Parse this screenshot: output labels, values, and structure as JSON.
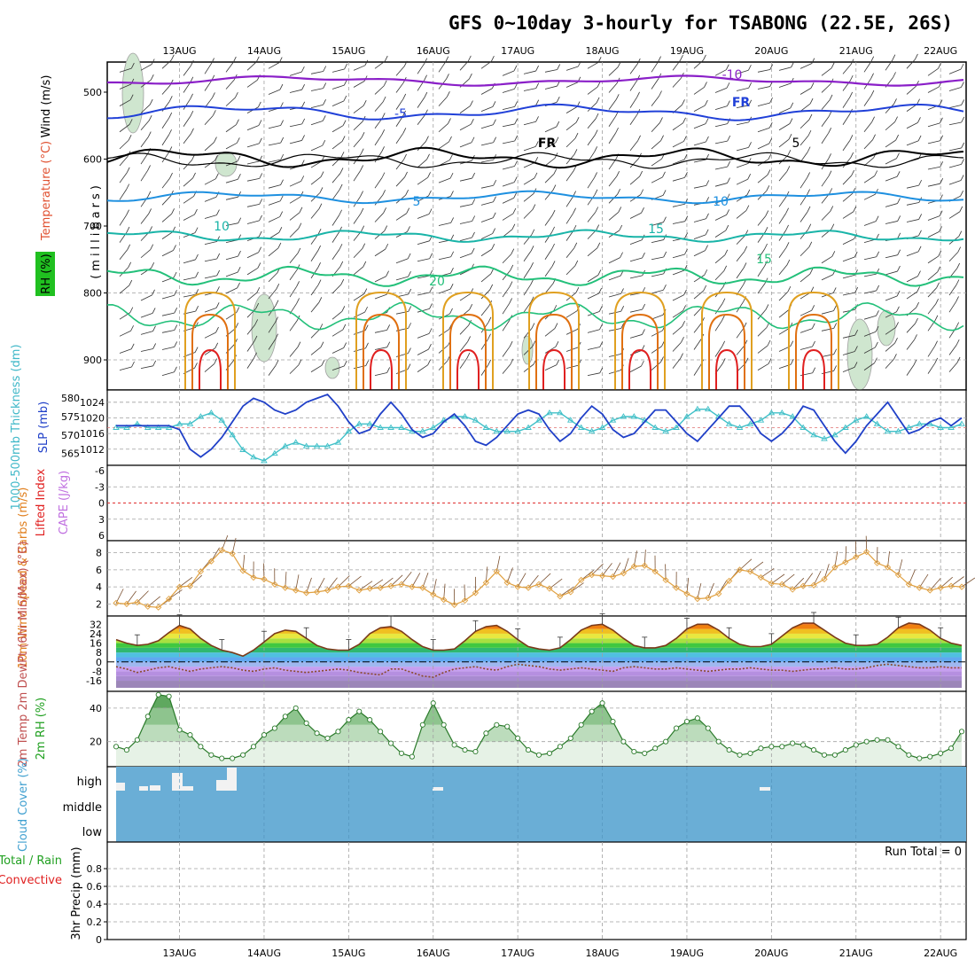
{
  "title": "GFS 0~10day 3-hourly for TSABONG (22.5E, 26S)",
  "dates": [
    "13AUG",
    "14AUG",
    "15AUG",
    "16AUG",
    "17AUG",
    "18AUG",
    "19AUG",
    "20AUG",
    "21AUG",
    "22AUG"
  ],
  "colors": {
    "purple": "#8a1fc8",
    "blue": "#2040d8",
    "black": "#000000",
    "lightblue": "#1e90e0",
    "teal": "#19b4a8",
    "green": "#23c07a",
    "orange": "#e0a020",
    "darkorange": "#e07010",
    "red": "#e02020",
    "cloud": "#6aaed6",
    "slp": "#2040c8",
    "thickness": "#40c0c8",
    "wind10": "#e0a040",
    "rh": "#40a040",
    "grid": "#a0a0a0"
  },
  "panels": {
    "upper": {
      "ylabels": [
        {
          "text": "Wind (m/s)",
          "color": "#000000"
        },
        {
          "text": "Temperature (°C)",
          "color": "#e05030"
        },
        {
          "text": "(millibars)",
          "color": "#000000"
        },
        {
          "text": "RH (%)",
          "color": "#000000"
        }
      ],
      "ticks": [
        "500",
        "600",
        "700",
        "800",
        "900"
      ],
      "contour_labels": [
        "-10",
        "-5",
        "FR",
        "FR",
        "5",
        "5",
        "10",
        "10",
        "15",
        "15",
        "20"
      ]
    },
    "slp": {
      "ylabel_left": "1000-500mb Thickness (dm)",
      "ylabel_right": "SLP (mb)",
      "left_ticks": [
        "580",
        "575",
        "570",
        "565"
      ],
      "right_ticks": [
        "1024",
        "1020",
        "1016",
        "1012"
      ]
    },
    "cape": {
      "ylabel_left": "Lifted Index",
      "ylabel_right": "CAPE (J/kg)",
      "ticks": [
        "-6",
        "-3",
        "0",
        "3",
        "6"
      ]
    },
    "wind": {
      "ylabel": "10m Wind Speed & Barbs (m/s)",
      "ticks": [
        "8",
        "6",
        "4",
        "2"
      ]
    },
    "temp": {
      "ylabel": "2m Temp 2m DewPt (6hr Min/Max) (°C)",
      "ticks": [
        "32",
        "24",
        "16",
        "8",
        "0",
        "-8",
        "-16"
      ]
    },
    "rh": {
      "ylabel": "2m RH (%)",
      "ticks": [
        "40",
        "20"
      ]
    },
    "cloud": {
      "ylabel": "Cloud Cover (%)",
      "levels": [
        "high",
        "middle",
        "low"
      ]
    },
    "precip": {
      "ylabel": "3hr Precip (mm)",
      "legend_total": "Total / Rain",
      "legend_conv": "Convective",
      "ticks": [
        "0.8",
        "0.6",
        "0.4",
        "0.2",
        "0"
      ],
      "run_total": "Run Total = 0"
    }
  },
  "chart_data": [
    {
      "type": "line",
      "name": "SLP and 1000-500mb Thickness",
      "x_unit": "hours from 12 Aug 18Z",
      "x": [
        0,
        3,
        6,
        9,
        12,
        15,
        18,
        21,
        24,
        27,
        30,
        33,
        36,
        39,
        42,
        45,
        48,
        51,
        54,
        57,
        60,
        63,
        66,
        69,
        72,
        75,
        78,
        81,
        84,
        87,
        90,
        93,
        96,
        99,
        102,
        105,
        108,
        111,
        114,
        117,
        120,
        123,
        126,
        129,
        132,
        135,
        138,
        141,
        144,
        147,
        150,
        153,
        156,
        159,
        162,
        165,
        168,
        171,
        174,
        177,
        180,
        183,
        186,
        189,
        192,
        195,
        198,
        201,
        204,
        207,
        210,
        213,
        216,
        219,
        222,
        225,
        228,
        231,
        234,
        237,
        240
      ],
      "series": [
        {
          "name": "SLP (mb)",
          "axis": "right",
          "ylim": [
            1009,
            1026
          ],
          "values": [
            1018,
            1018,
            1018,
            1018,
            1018,
            1018,
            1017,
            1012,
            1010,
            1012,
            1015,
            1019,
            1023,
            1025,
            1024,
            1022,
            1021,
            1022,
            1024,
            1025,
            1026,
            1023,
            1019,
            1016,
            1017,
            1021,
            1024,
            1021,
            1017,
            1015,
            1016,
            1019,
            1021,
            1018,
            1014,
            1013,
            1015,
            1018,
            1021,
            1022,
            1021,
            1017,
            1014,
            1016,
            1020,
            1023,
            1021,
            1017,
            1015,
            1016,
            1019,
            1022,
            1022,
            1019,
            1016,
            1014,
            1017,
            1020,
            1023,
            1023,
            1020,
            1016,
            1014,
            1016,
            1019,
            1023,
            1022,
            1018,
            1014,
            1011,
            1014,
            1018,
            1021,
            1024,
            1020,
            1016,
            1017,
            1019,
            1020,
            1018,
            1020
          ]
        },
        {
          "name": "1000-500mb Thickness (dm)",
          "axis": "left",
          "ylim": [
            563,
            581
          ],
          "values": [
            572,
            572,
            573,
            572,
            572,
            572,
            573,
            573,
            575,
            576,
            574,
            570,
            566,
            564,
            563,
            565,
            567,
            568,
            567,
            567,
            567,
            568,
            571,
            573,
            573,
            572,
            572,
            572,
            571,
            571,
            572,
            574,
            575,
            575,
            574,
            572,
            571,
            571,
            571,
            572,
            574,
            576,
            576,
            574,
            572,
            571,
            572,
            574,
            575,
            575,
            574,
            572,
            571,
            572,
            575,
            577,
            577,
            575,
            573,
            572,
            573,
            574,
            576,
            576,
            575,
            572,
            570,
            569,
            570,
            572,
            574,
            575,
            573,
            571,
            571,
            572,
            573,
            573,
            572,
            572,
            573
          ]
        }
      ]
    },
    {
      "type": "line",
      "name": "Lifted Index / CAPE",
      "x_unit": "hours from 12 Aug 18Z",
      "ylim": [
        6,
        -6
      ],
      "series": [
        {
          "name": "Lifted Index zero line",
          "values": [
            0,
            0
          ]
        }
      ]
    },
    {
      "type": "line",
      "name": "10m Wind Speed (m/s)",
      "x_unit": "hours from 12 Aug 18Z",
      "ylim": [
        1,
        9
      ],
      "x": [
        0,
        3,
        6,
        9,
        12,
        15,
        18,
        21,
        24,
        27,
        30,
        33,
        36,
        39,
        42,
        45,
        48,
        51,
        54,
        57,
        60,
        63,
        66,
        69,
        72,
        75,
        78,
        81,
        84,
        87,
        90,
        93,
        96,
        99,
        102,
        105,
        108,
        111,
        114,
        117,
        120,
        123,
        126,
        129,
        132,
        135,
        138,
        141,
        144,
        147,
        150,
        153,
        156,
        159,
        162,
        165,
        168,
        171,
        174,
        177,
        180,
        183,
        186,
        189,
        192,
        195,
        198,
        201,
        204,
        207,
        210,
        213,
        216,
        219,
        222,
        225,
        228,
        231,
        234,
        237,
        240
      ],
      "series": [
        {
          "name": "10m Wind Speed",
          "values": [
            2.1,
            2.0,
            2.2,
            1.7,
            1.6,
            2.6,
            4.0,
            4.1,
            5.8,
            7.0,
            8.3,
            7.9,
            5.9,
            5.1,
            4.9,
            4.3,
            3.9,
            3.6,
            3.3,
            3.4,
            3.6,
            4.0,
            4.1,
            3.6,
            3.8,
            3.9,
            4.1,
            4.3,
            4.0,
            3.9,
            3.1,
            2.5,
            1.9,
            2.4,
            3.3,
            4.5,
            5.8,
            4.5,
            4.0,
            3.9,
            4.3,
            3.8,
            2.9,
            3.4,
            4.8,
            5.4,
            5.3,
            5.2,
            5.6,
            6.4,
            6.5,
            5.8,
            4.8,
            3.9,
            3.2,
            2.6,
            2.7,
            3.2,
            4.7,
            6.0,
            5.8,
            5.1,
            4.4,
            4.3,
            3.7,
            4.1,
            4.2,
            4.9,
            6.3,
            6.9,
            7.5,
            8.1,
            6.8,
            6.3,
            5.4,
            4.3,
            3.9,
            3.6,
            3.9,
            4.1,
            4.0
          ]
        }
      ]
    },
    {
      "type": "area",
      "name": "2m Temperature and Dew Point (°C)",
      "x_unit": "hours from 12 Aug 18Z",
      "ylim": [
        -22,
        36
      ],
      "series": [
        {
          "name": "2m Temp",
          "values": [
            19,
            16,
            14,
            15,
            18,
            25,
            31,
            28,
            20,
            14,
            10,
            8,
            5,
            10,
            17,
            24,
            27,
            26,
            20,
            14,
            11,
            10,
            10,
            15,
            24,
            29,
            30,
            26,
            19,
            13,
            10,
            10,
            11,
            18,
            26,
            30,
            31,
            26,
            19,
            13,
            11,
            10,
            12,
            19,
            27,
            31,
            32,
            27,
            20,
            14,
            12,
            12,
            14,
            20,
            28,
            32,
            32,
            27,
            20,
            15,
            13,
            13,
            15,
            22,
            29,
            33,
            33,
            27,
            21,
            16,
            14,
            14,
            15,
            21,
            29,
            33,
            32,
            27,
            20,
            16,
            14
          ]
        },
        {
          "name": "2m DewPt",
          "values": [
            -4,
            -6,
            -9,
            -7,
            -5,
            -4,
            -6,
            -8,
            -6,
            -5,
            -4,
            -5,
            -7,
            -8,
            -6,
            -5,
            -7,
            -8,
            -9,
            -8,
            -7,
            -6,
            -7,
            -9,
            -10,
            -11,
            -6,
            -6,
            -9,
            -12,
            -13,
            -9,
            -6,
            -5,
            -4,
            -6,
            -7,
            -4,
            -2,
            -3,
            -4,
            -6,
            -7,
            -6,
            -5,
            -6,
            -7,
            -8,
            -5,
            -4,
            -5,
            -6,
            -6,
            -5,
            -6,
            -7,
            -8,
            -7,
            -6,
            -6,
            -5,
            -6,
            -7,
            -7,
            -8,
            -7,
            -6,
            -6,
            -5,
            -6,
            -6,
            -5,
            -3,
            -2,
            -3,
            -4,
            -5,
            -5,
            -4,
            -5,
            -5
          ]
        }
      ]
    },
    {
      "type": "area",
      "name": "2m RH (%)",
      "x_unit": "hours from 12 Aug 18Z",
      "ylim": [
        5,
        50
      ],
      "series": [
        {
          "name": "2m RH",
          "values": [
            17,
            15,
            21,
            35,
            48,
            47,
            27,
            24,
            17,
            12,
            10,
            10,
            12,
            17,
            24,
            28,
            35,
            40,
            31,
            25,
            22,
            26,
            33,
            38,
            33,
            26,
            19,
            13,
            11,
            30,
            43,
            30,
            18,
            15,
            14,
            25,
            30,
            29,
            22,
            15,
            12,
            13,
            17,
            22,
            30,
            38,
            43,
            32,
            20,
            14,
            13,
            16,
            20,
            28,
            32,
            34,
            28,
            20,
            15,
            12,
            13,
            16,
            17,
            17,
            19,
            18,
            15,
            12,
            12,
            15,
            18,
            20,
            21,
            21,
            17,
            12,
            10,
            11,
            13,
            16,
            26
          ]
        }
      ]
    },
    {
      "type": "bar",
      "name": "Cloud Cover (%)",
      "categories": [
        "high",
        "middle",
        "low"
      ],
      "note": "sky almost entirely clear; sparse high cloud on 13-14 Aug"
    },
    {
      "type": "bar",
      "name": "3hr Precip (mm)",
      "ylim": [
        0,
        1
      ],
      "series": [
        {
          "name": "Total / Rain",
          "values": [
            0
          ]
        },
        {
          "name": "Convective",
          "values": [
            0
          ]
        }
      ],
      "run_total": 0
    }
  ]
}
